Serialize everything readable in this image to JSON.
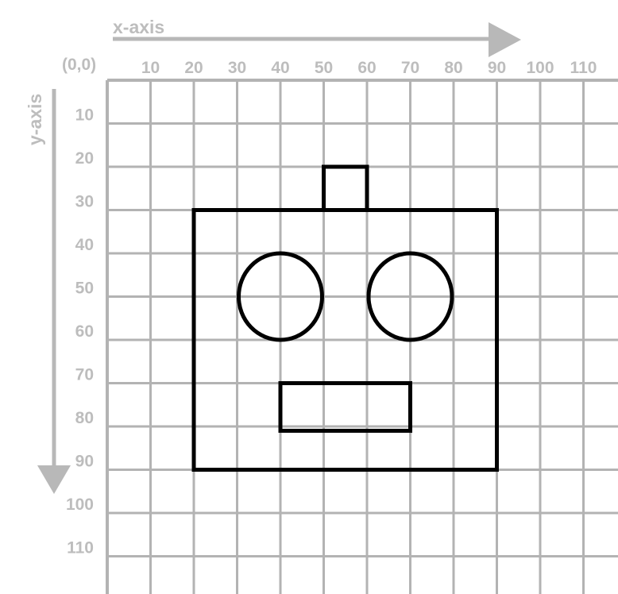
{
  "axes": {
    "x_title": "x-axis",
    "y_title": "y-axis",
    "origin_label": "(0,0)",
    "x_ticks": [
      "10",
      "20",
      "30",
      "40",
      "50",
      "60",
      "70",
      "80",
      "90",
      "100",
      "110"
    ],
    "y_ticks": [
      "10",
      "20",
      "30",
      "40",
      "50",
      "60",
      "70",
      "80",
      "90",
      "100",
      "110"
    ]
  },
  "grid": {
    "step": 10,
    "max": 120
  },
  "robot": {
    "head": {
      "x1": 20,
      "y1": 30,
      "x2": 90,
      "y2": 90
    },
    "antenna": {
      "x1": 50,
      "y1": 20,
      "x2": 60,
      "y2": 30
    },
    "left_eye": {
      "cx": 40,
      "cy": 50,
      "rx": 10,
      "ry": 10
    },
    "right_eye": {
      "cx": 70,
      "cy": 50,
      "rx": 10,
      "ry": 10
    },
    "mouth": {
      "x1": 40,
      "y1": 70,
      "x2": 70,
      "y2": 81
    }
  },
  "colors": {
    "grid": "#b3b3b3",
    "axis_label": "#bdbdbd",
    "arrow": "#b8b8b8",
    "outline": "#000000"
  }
}
